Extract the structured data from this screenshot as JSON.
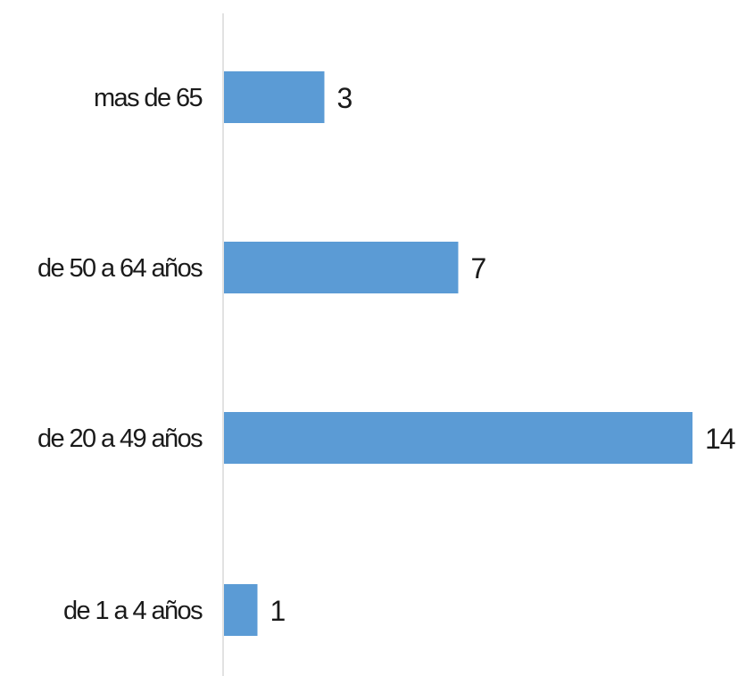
{
  "chart_data": {
    "type": "bar",
    "orientation": "horizontal",
    "title": "",
    "categories": [
      "mas de 65",
      "de 50 a 64 años",
      "de 20 a 49 años",
      "de 1 a 4 años"
    ],
    "values": [
      3,
      7,
      14,
      1
    ],
    "xlim": [
      0,
      14
    ],
    "grid": false,
    "legend": "none",
    "data_labels": true,
    "bar_color": "#5b9bd5",
    "axis_color": "#d9d9d9",
    "text_color": "#1a1a1a"
  }
}
